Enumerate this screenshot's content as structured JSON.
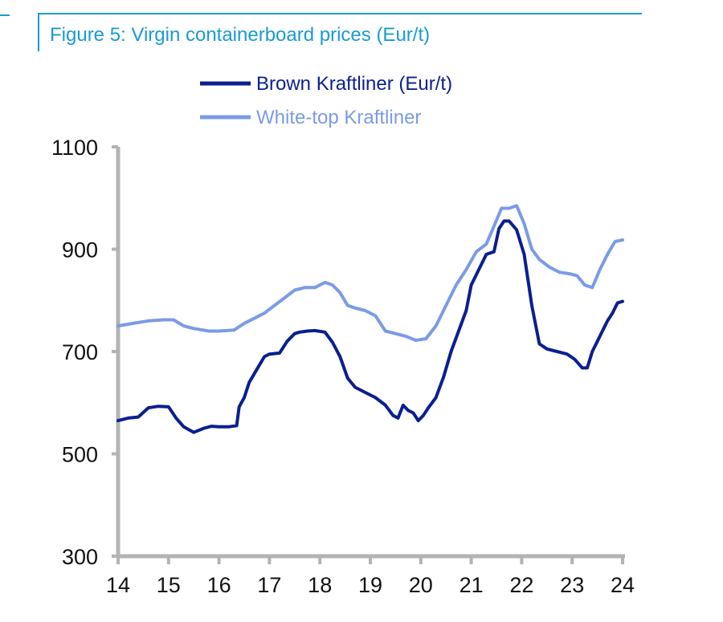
{
  "chart_data": {
    "type": "line",
    "title": "Figure 5: Virgin containerboard prices (Eur/t)",
    "xlabel": "",
    "ylabel": "",
    "x_ticks": [
      "14",
      "15",
      "16",
      "17",
      "18",
      "19",
      "20",
      "21",
      "22",
      "23",
      "24"
    ],
    "y_ticks": [
      "1100",
      "900",
      "700",
      "500",
      "300"
    ],
    "xlim": [
      14,
      24
    ],
    "ylim": [
      300,
      1100
    ],
    "legend_position": "top-center",
    "series": [
      {
        "name": "Brown Kraftliner (Eur/t)",
        "color": "#0a1f8f",
        "x": [
          14.0,
          14.2,
          14.4,
          14.6,
          14.8,
          15.0,
          15.15,
          15.3,
          15.5,
          15.7,
          15.85,
          16.0,
          16.2,
          16.35,
          16.4,
          16.5,
          16.6,
          16.75,
          16.9,
          17.0,
          17.2,
          17.35,
          17.5,
          17.6,
          17.75,
          17.9,
          18.1,
          18.25,
          18.4,
          18.55,
          18.7,
          18.9,
          19.1,
          19.3,
          19.45,
          19.55,
          19.65,
          19.75,
          19.85,
          19.95,
          20.05,
          20.15,
          20.3,
          20.45,
          20.6,
          20.75,
          20.9,
          21.0,
          21.15,
          21.3,
          21.45,
          21.55,
          21.65,
          21.75,
          21.9,
          22.05,
          22.2,
          22.35,
          22.5,
          22.7,
          22.9,
          23.05,
          23.2,
          23.3,
          23.4,
          23.5,
          23.6,
          23.7,
          23.8,
          23.9,
          24.0
        ],
        "values": [
          565,
          570,
          572,
          590,
          593,
          592,
          570,
          553,
          542,
          550,
          554,
          553,
          553,
          555,
          592,
          610,
          640,
          665,
          690,
          695,
          697,
          720,
          735,
          738,
          740,
          741,
          738,
          718,
          690,
          648,
          630,
          620,
          610,
          595,
          575,
          570,
          595,
          585,
          580,
          565,
          575,
          590,
          610,
          650,
          700,
          740,
          780,
          830,
          860,
          890,
          895,
          940,
          955,
          955,
          938,
          890,
          790,
          715,
          705,
          700,
          695,
          685,
          668,
          668,
          700,
          720,
          740,
          760,
          775,
          795,
          798
        ]
      },
      {
        "name": "White-top Kraftliner",
        "color": "#7b9be6",
        "x": [
          14.0,
          14.3,
          14.6,
          14.9,
          15.1,
          15.3,
          15.5,
          15.8,
          16.0,
          16.3,
          16.5,
          16.7,
          16.9,
          17.1,
          17.3,
          17.5,
          17.7,
          17.9,
          18.1,
          18.25,
          18.4,
          18.55,
          18.7,
          18.9,
          19.1,
          19.3,
          19.5,
          19.7,
          19.9,
          20.1,
          20.3,
          20.5,
          20.7,
          20.9,
          21.1,
          21.3,
          21.45,
          21.6,
          21.75,
          21.9,
          22.05,
          22.2,
          22.35,
          22.55,
          22.75,
          22.95,
          23.1,
          23.25,
          23.4,
          23.55,
          23.7,
          23.85,
          24.0
        ],
        "values": [
          750,
          755,
          760,
          762,
          762,
          750,
          745,
          740,
          740,
          742,
          755,
          765,
          775,
          790,
          805,
          820,
          825,
          825,
          835,
          830,
          815,
          790,
          785,
          780,
          770,
          740,
          735,
          730,
          722,
          725,
          750,
          790,
          830,
          860,
          895,
          910,
          945,
          980,
          980,
          985,
          950,
          900,
          880,
          865,
          855,
          852,
          848,
          830,
          825,
          860,
          890,
          915,
          918
        ]
      }
    ]
  }
}
